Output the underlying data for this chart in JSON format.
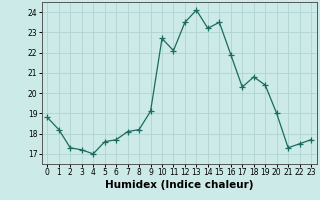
{
  "x": [
    0,
    1,
    2,
    3,
    4,
    5,
    6,
    7,
    8,
    9,
    10,
    11,
    12,
    13,
    14,
    15,
    16,
    17,
    18,
    19,
    20,
    21,
    22,
    23
  ],
  "y": [
    18.8,
    18.2,
    17.3,
    17.2,
    17.0,
    17.6,
    17.7,
    18.1,
    18.2,
    19.1,
    22.7,
    22.1,
    23.5,
    24.1,
    23.2,
    23.5,
    21.9,
    20.3,
    20.8,
    20.4,
    19.0,
    17.3,
    17.5,
    17.7
  ],
  "line_color": "#1a6b5e",
  "marker": "+",
  "marker_size": 4,
  "bg_color": "#cceae8",
  "grid_color": "#b0d4d0",
  "xlabel": "Humidex (Indice chaleur)",
  "ylim": [
    16.5,
    24.5
  ],
  "xlim": [
    -0.5,
    23.5
  ],
  "yticks": [
    17,
    18,
    19,
    20,
    21,
    22,
    23,
    24
  ],
  "xticks": [
    0,
    1,
    2,
    3,
    4,
    5,
    6,
    7,
    8,
    9,
    10,
    11,
    12,
    13,
    14,
    15,
    16,
    17,
    18,
    19,
    20,
    21,
    22,
    23
  ],
  "tick_fontsize": 5.5,
  "xlabel_fontsize": 7.5,
  "xlabel_fontweight": "bold"
}
